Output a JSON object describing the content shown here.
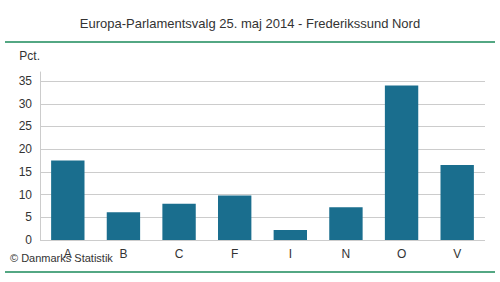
{
  "chart_data": {
    "type": "bar",
    "title": "Europa-Parlamentsvalg 25. maj 2014 - Frederikssund Nord",
    "categories": [
      "A",
      "B",
      "C",
      "F",
      "I",
      "N",
      "O",
      "V"
    ],
    "values": [
      17.5,
      6.1,
      8.0,
      9.8,
      2.2,
      7.2,
      34.0,
      16.5
    ],
    "color": "#1a6e8e",
    "ylabel": "Pct.",
    "ylim": [
      0,
      37
    ],
    "yticks": [
      0,
      5,
      10,
      15,
      20,
      25,
      30,
      35
    ],
    "grid": true,
    "annotations": [
      "© Danmarks Statistik"
    ]
  }
}
